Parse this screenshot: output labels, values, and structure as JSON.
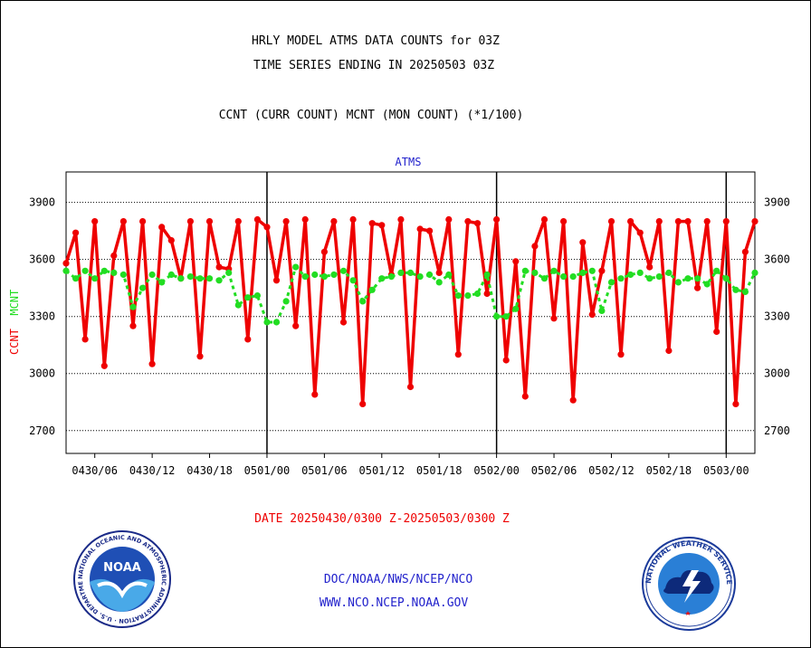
{
  "header": {
    "title_line1": "HRLY MODEL ATMS DATA COUNTS for 03Z",
    "title_line2": "TIME SERIES ENDING IN 20250503 03Z",
    "subtitle": "CCNT (CURR COUNT) MCNT (MON COUNT) (*1/100)"
  },
  "footer": {
    "date_range": "DATE 20250430/0300 Z-20250503/0300 Z",
    "org_line": "DOC/NOAA/NWS/NCEP/NCO",
    "url_line": "WWW.NCO.NCEP.NOAA.GOV"
  },
  "logos": {
    "noaa_text": "NOAA",
    "noaa_ring_text": "NATIONAL OCEANIC AND ATMOSPHERIC ADMINISTRATION · U.S. DEPARTMENT OF COMMERCE ·",
    "nws_ring_text": "NATIONAL WEATHER SERVICE"
  },
  "colors": {
    "ccnt": "#ee0000",
    "mcnt": "#22dd22",
    "panel_label": "#2222cc",
    "grid": "#000000"
  },
  "chart_data": {
    "type": "line",
    "panel_title": "ATMS",
    "ylabel_parts": [
      "CCNT",
      "MCNT"
    ],
    "ylim": [
      2580,
      4060
    ],
    "yticks": [
      2700,
      3000,
      3300,
      3600,
      3900
    ],
    "ytick_labels": [
      "2700",
      "3000",
      "3300",
      "3600",
      "3900"
    ],
    "grid": "horizontal dotted",
    "x_start_hour": 0,
    "x_end_hour": 72,
    "x_tick_hours": [
      3,
      9,
      15,
      21,
      27,
      33,
      39,
      45,
      51,
      57,
      63,
      69
    ],
    "x_tick_labels": [
      "0430/06",
      "0430/12",
      "0430/18",
      "0501/00",
      "0501/06",
      "0501/12",
      "0501/18",
      "0502/00",
      "0502/06",
      "0502/12",
      "0502/18",
      "0503/00"
    ],
    "day_boundary_hours": [
      21,
      45,
      69
    ],
    "series": [
      {
        "name": "CCNT",
        "color": "#ee0000",
        "values": [
          3580,
          3740,
          3180,
          3800,
          3040,
          3620,
          3800,
          3250,
          3800,
          3050,
          3770,
          3700,
          3500,
          3800,
          3090,
          3800,
          3560,
          3550,
          3800,
          3180,
          3810,
          3770,
          3490,
          3800,
          3250,
          3810,
          2890,
          3640,
          3800,
          3270,
          3810,
          2840,
          3790,
          3780,
          3520,
          3810,
          2930,
          3760,
          3750,
          3530,
          3810,
          3100,
          3800,
          3790,
          3420,
          3810,
          3070,
          3590,
          2880,
          3670,
          3810,
          3290,
          3800,
          2860,
          3690,
          3310,
          3540,
          3800,
          3100,
          3800,
          3740,
          3560,
          3800,
          3120,
          3800,
          3800,
          3450,
          3800,
          3220,
          3800,
          2840,
          3640,
          3800
        ]
      },
      {
        "name": "MCNT",
        "color": "#22dd22",
        "values": [
          3540,
          3500,
          3540,
          3500,
          3540,
          3530,
          3520,
          3350,
          3450,
          3520,
          3480,
          3520,
          3500,
          3510,
          3500,
          3500,
          3490,
          3530,
          3360,
          3400,
          3410,
          3270,
          3270,
          3380,
          3560,
          3510,
          3520,
          3510,
          3520,
          3540,
          3490,
          3380,
          3440,
          3500,
          3510,
          3530,
          3530,
          3510,
          3520,
          3480,
          3520,
          3410,
          3410,
          3420,
          3520,
          3300,
          3300,
          3340,
          3540,
          3530,
          3500,
          3540,
          3510,
          3510,
          3530,
          3540,
          3330,
          3480,
          3500,
          3520,
          3530,
          3500,
          3510,
          3530,
          3480,
          3500,
          3500,
          3470,
          3540,
          3500,
          3440,
          3430,
          3530
        ]
      }
    ]
  }
}
